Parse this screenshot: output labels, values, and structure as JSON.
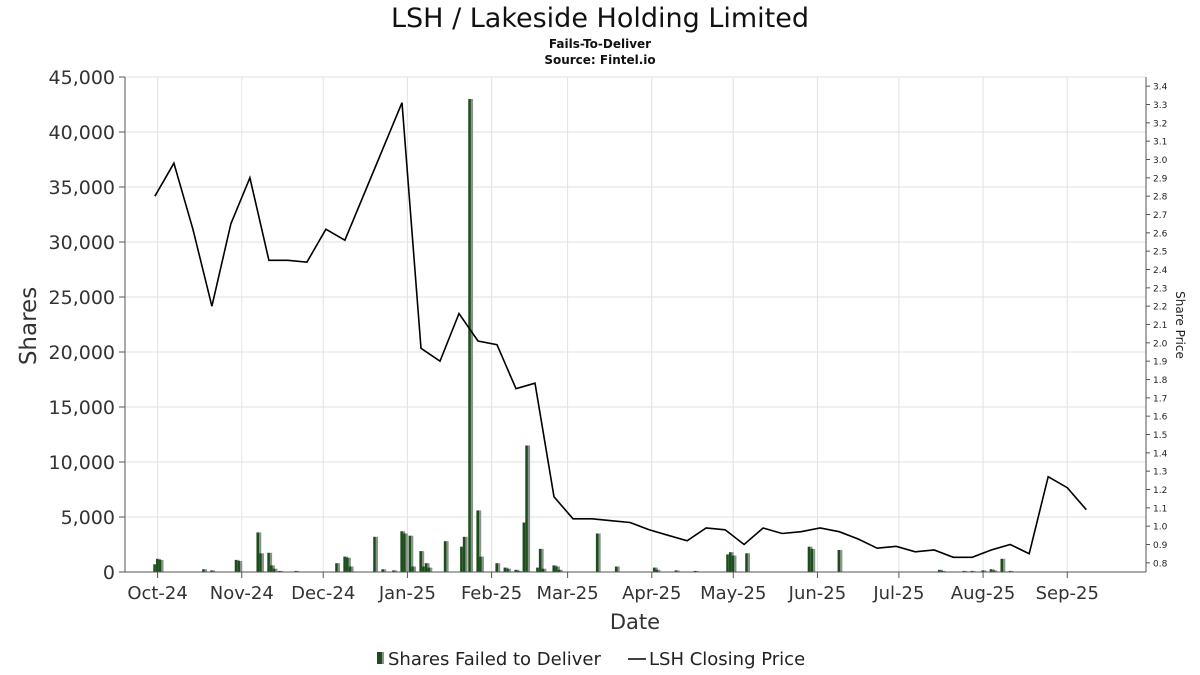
{
  "chart_data": {
    "type": "bar",
    "title": "LSH / Lakeside Holding Limited",
    "subtitle": "Fails-To-Deliver",
    "source": "Source: Fintel.io",
    "xlabel": "Date",
    "ylabel": "Shares",
    "y2label": "Share Price",
    "ylim": [
      0,
      45000
    ],
    "y2lim": [
      0.75,
      3.45
    ],
    "xlim": [
      "2024-09-19",
      "2025-09-30"
    ],
    "y_ticks": [
      0,
      5000,
      10000,
      15000,
      20000,
      25000,
      30000,
      35000,
      40000,
      45000
    ],
    "y_tick_labels": [
      "0",
      "5,000",
      "10,000",
      "15,000",
      "20,000",
      "25,000",
      "30,000",
      "35,000",
      "40,000",
      "45,000"
    ],
    "y2_ticks": [
      0.8,
      0.9,
      1.0,
      1.1,
      1.2,
      1.3,
      1.4,
      1.5,
      1.6,
      1.7,
      1.8,
      1.9,
      2.0,
      2.1,
      2.2,
      2.3,
      2.4,
      2.5,
      2.6,
      2.7,
      2.8,
      2.9,
      3.0,
      3.1,
      3.2,
      3.3,
      3.4
    ],
    "y2_tick_labels": [
      "0.8",
      "0.9",
      "1.0",
      "1.1",
      "1.2",
      "1.3",
      "1.4",
      "1.5",
      "1.6",
      "1.7",
      "1.8",
      "1.9",
      "2.0",
      "2.1",
      "2.2",
      "2.3",
      "2.4",
      "2.5",
      "2.6",
      "2.7",
      "2.8",
      "2.9",
      "3.0",
      "3.1",
      "3.2",
      "3.3",
      "3.4"
    ],
    "x_ticks": [
      "2024-10-01",
      "2024-11-01",
      "2024-12-01",
      "2025-01-01",
      "2025-02-01",
      "2025-03-01",
      "2025-04-01",
      "2025-05-01",
      "2025-06-01",
      "2025-07-01",
      "2025-08-01",
      "2025-09-01"
    ],
    "x_tick_labels": [
      "Oct-24",
      "Nov-24",
      "Dec-24",
      "Jan-25",
      "Feb-25",
      "Mar-25",
      "Apr-25",
      "May-25",
      "Jun-25",
      "Jul-25",
      "Aug-25",
      "Sep-25"
    ],
    "grid": true,
    "legend_position": "bottom-center",
    "colors": {
      "bar_main": "#1c4d1c",
      "bar_shadow": "#8a938a",
      "price_line": "#000000",
      "grid": "#e2e2e2",
      "axis": "#555555"
    },
    "series": [
      {
        "name": "Shares Failed to Deliver",
        "type": "bar",
        "axis": "left",
        "points": [
          {
            "x": "2024-09-30",
            "y": 700
          },
          {
            "x": "2024-10-01",
            "y": 1200
          },
          {
            "x": "2024-10-02",
            "y": 1100
          },
          {
            "x": "2024-10-18",
            "y": 250
          },
          {
            "x": "2024-10-21",
            "y": 150
          },
          {
            "x": "2024-10-30",
            "y": 1100
          },
          {
            "x": "2024-10-31",
            "y": 1000
          },
          {
            "x": "2024-11-07",
            "y": 3600
          },
          {
            "x": "2024-11-08",
            "y": 1700
          },
          {
            "x": "2024-11-11",
            "y": 1750
          },
          {
            "x": "2024-11-12",
            "y": 600
          },
          {
            "x": "2024-11-13",
            "y": 300
          },
          {
            "x": "2024-11-15",
            "y": 100
          },
          {
            "x": "2024-11-21",
            "y": 100
          },
          {
            "x": "2024-12-06",
            "y": 800
          },
          {
            "x": "2024-12-09",
            "y": 1400
          },
          {
            "x": "2024-12-10",
            "y": 1300
          },
          {
            "x": "2024-12-11",
            "y": 500
          },
          {
            "x": "2024-12-20",
            "y": 3200
          },
          {
            "x": "2024-12-23",
            "y": 250
          },
          {
            "x": "2024-12-27",
            "y": 150
          },
          {
            "x": "2024-12-30",
            "y": 3700
          },
          {
            "x": "2024-12-31",
            "y": 3500
          },
          {
            "x": "2025-01-02",
            "y": 3300
          },
          {
            "x": "2025-01-03",
            "y": 500
          },
          {
            "x": "2025-01-06",
            "y": 1900
          },
          {
            "x": "2025-01-07",
            "y": 500
          },
          {
            "x": "2025-01-08",
            "y": 800
          },
          {
            "x": "2025-01-09",
            "y": 400
          },
          {
            "x": "2025-01-15",
            "y": 2800
          },
          {
            "x": "2025-01-21",
            "y": 2300
          },
          {
            "x": "2025-01-22",
            "y": 3200
          },
          {
            "x": "2025-01-24",
            "y": 43000
          },
          {
            "x": "2025-01-27",
            "y": 5600
          },
          {
            "x": "2025-01-28",
            "y": 1400
          },
          {
            "x": "2025-02-03",
            "y": 800
          },
          {
            "x": "2025-02-06",
            "y": 400
          },
          {
            "x": "2025-02-07",
            "y": 300
          },
          {
            "x": "2025-02-10",
            "y": 200
          },
          {
            "x": "2025-02-11",
            "y": 100
          },
          {
            "x": "2025-02-13",
            "y": 4500
          },
          {
            "x": "2025-02-14",
            "y": 11500
          },
          {
            "x": "2025-02-18",
            "y": 400
          },
          {
            "x": "2025-02-19",
            "y": 2100
          },
          {
            "x": "2025-02-20",
            "y": 300
          },
          {
            "x": "2025-02-24",
            "y": 600
          },
          {
            "x": "2025-02-25",
            "y": 500
          },
          {
            "x": "2025-02-26",
            "y": 200
          },
          {
            "x": "2025-03-12",
            "y": 3500
          },
          {
            "x": "2025-03-19",
            "y": 500
          },
          {
            "x": "2025-04-02",
            "y": 400
          },
          {
            "x": "2025-04-03",
            "y": 200
          },
          {
            "x": "2025-04-10",
            "y": 150
          },
          {
            "x": "2025-04-17",
            "y": 100
          },
          {
            "x": "2025-04-29",
            "y": 1600
          },
          {
            "x": "2025-04-30",
            "y": 1800
          },
          {
            "x": "2025-05-01",
            "y": 1500
          },
          {
            "x": "2025-05-06",
            "y": 1700
          },
          {
            "x": "2025-05-29",
            "y": 2300
          },
          {
            "x": "2025-05-30",
            "y": 2100
          },
          {
            "x": "2025-06-09",
            "y": 2000
          },
          {
            "x": "2025-07-16",
            "y": 200
          },
          {
            "x": "2025-07-17",
            "y": 100
          },
          {
            "x": "2025-07-25",
            "y": 100
          },
          {
            "x": "2025-07-28",
            "y": 100
          },
          {
            "x": "2025-08-01",
            "y": 150
          },
          {
            "x": "2025-08-04",
            "y": 250
          },
          {
            "x": "2025-08-05",
            "y": 150
          },
          {
            "x": "2025-08-08",
            "y": 1200
          },
          {
            "x": "2025-08-11",
            "y": 100
          }
        ]
      },
      {
        "name": "LSH Closing Price",
        "type": "line",
        "axis": "right",
        "points": [
          {
            "x": "2024-09-30",
            "y": 2.8
          },
          {
            "x": "2024-10-07",
            "y": 2.98
          },
          {
            "x": "2024-10-14",
            "y": 2.62
          },
          {
            "x": "2024-10-21",
            "y": 2.2
          },
          {
            "x": "2024-10-28",
            "y": 2.65
          },
          {
            "x": "2024-11-04",
            "y": 2.9
          },
          {
            "x": "2024-11-11",
            "y": 2.45
          },
          {
            "x": "2024-11-18",
            "y": 2.45
          },
          {
            "x": "2024-11-25",
            "y": 2.44
          },
          {
            "x": "2024-12-02",
            "y": 2.62
          },
          {
            "x": "2024-12-09",
            "y": 2.56
          },
          {
            "x": "2024-12-30",
            "y": 3.31
          },
          {
            "x": "2025-01-06",
            "y": 1.97
          },
          {
            "x": "2025-01-13",
            "y": 1.9
          },
          {
            "x": "2025-01-20",
            "y": 2.16
          },
          {
            "x": "2025-01-27",
            "y": 2.01
          },
          {
            "x": "2025-02-03",
            "y": 1.99
          },
          {
            "x": "2025-02-10",
            "y": 1.75
          },
          {
            "x": "2025-02-17",
            "y": 1.78
          },
          {
            "x": "2025-02-24",
            "y": 1.16
          },
          {
            "x": "2025-03-03",
            "y": 1.04
          },
          {
            "x": "2025-03-10",
            "y": 1.04
          },
          {
            "x": "2025-03-17",
            "y": 1.03
          },
          {
            "x": "2025-03-24",
            "y": 1.02
          },
          {
            "x": "2025-03-31",
            "y": 0.98
          },
          {
            "x": "2025-04-07",
            "y": 0.95
          },
          {
            "x": "2025-04-14",
            "y": 0.92
          },
          {
            "x": "2025-04-21",
            "y": 0.99
          },
          {
            "x": "2025-04-28",
            "y": 0.98
          },
          {
            "x": "2025-05-05",
            "y": 0.9
          },
          {
            "x": "2025-05-12",
            "y": 0.99
          },
          {
            "x": "2025-05-19",
            "y": 0.96
          },
          {
            "x": "2025-05-26",
            "y": 0.97
          },
          {
            "x": "2025-06-02",
            "y": 0.99
          },
          {
            "x": "2025-06-09",
            "y": 0.97
          },
          {
            "x": "2025-06-16",
            "y": 0.93
          },
          {
            "x": "2025-06-23",
            "y": 0.88
          },
          {
            "x": "2025-06-30",
            "y": 0.89
          },
          {
            "x": "2025-07-07",
            "y": 0.86
          },
          {
            "x": "2025-07-14",
            "y": 0.87
          },
          {
            "x": "2025-07-21",
            "y": 0.83
          },
          {
            "x": "2025-07-28",
            "y": 0.83
          },
          {
            "x": "2025-08-04",
            "y": 0.87
          },
          {
            "x": "2025-08-11",
            "y": 0.9
          },
          {
            "x": "2025-08-18",
            "y": 0.85
          },
          {
            "x": "2025-08-25",
            "y": 1.27
          },
          {
            "x": "2025-09-01",
            "y": 1.21
          },
          {
            "x": "2025-09-08",
            "y": 1.09
          }
        ]
      }
    ]
  }
}
